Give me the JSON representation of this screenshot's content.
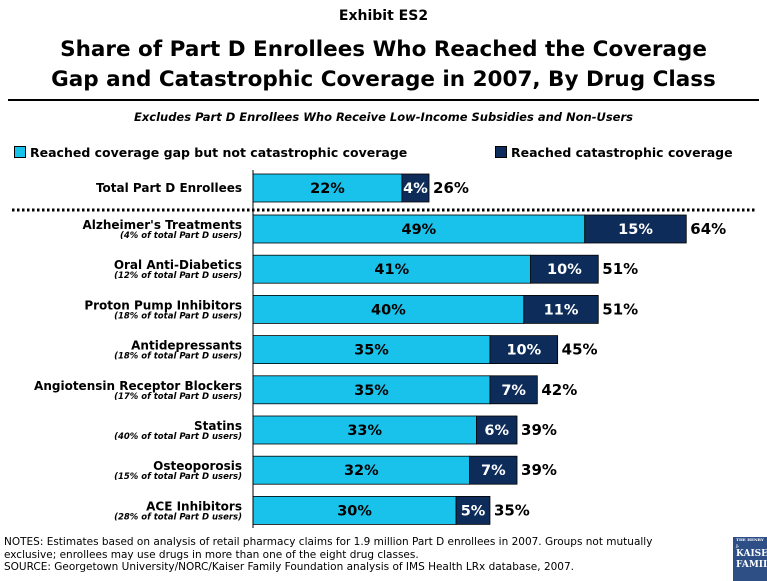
{
  "exhibit_label": "Exhibit ES2",
  "title_line1": "Share of Part D Enrollees Who Reached the Coverage",
  "title_line2": "Gap and Catastrophic Coverage in 2007, By Drug Class",
  "subtitle": "Excludes Part D Enrollees Who Receive Low-Income Subsidies and Non-Users",
  "notes_line1": "NOTES: Estimates based on analysis of retail pharmacy claims for 1.9 million Part D enrollees in 2007.  Groups not mutually",
  "notes_line2": "exclusive; enrollees may use drugs in more than one of the eight drug classes.",
  "source_line": "SOURCE: Georgetown University/NORC/Kaiser Family Foundation analysis of IMS Health LRx database, 2007.",
  "logo": {
    "small": "THE HENRY J.",
    "line1": "KAISE",
    "line2": "FAMIL"
  },
  "colors": {
    "gap": "#19c2ea",
    "catastrophic": "#0d2c5a",
    "border": "#000000"
  },
  "chart_data": {
    "type": "bar",
    "orientation": "horizontal",
    "stacked": true,
    "categories": [
      "Total Part D Enrollees",
      "Alzheimer's Treatments",
      "Oral Anti-Diabetics",
      "Proton Pump Inhibitors",
      "Antidepressants",
      "Angiotensin Receptor Blockers",
      "Statins",
      "Osteoporosis",
      "ACE Inhibitors"
    ],
    "category_notes": [
      "",
      "(4% of total Part D users)",
      "(12% of total Part D users)",
      "(18% of total Part D users)",
      "(18% of total Part D users)",
      "(17% of total Part D users)",
      "(40% of total Part D users)",
      "(15% of total Part D users)",
      "(28% of total Part D users)"
    ],
    "series": [
      {
        "name": "Reached coverage gap but not catastrophic coverage",
        "values": [
          22,
          49,
          41,
          40,
          35,
          35,
          33,
          32,
          30
        ],
        "color": "#19c2ea"
      },
      {
        "name": "Reached catastrophic coverage",
        "values": [
          4,
          15,
          10,
          11,
          10,
          7,
          6,
          7,
          5
        ],
        "color": "#0d2c5a"
      }
    ],
    "totals": [
      26,
      64,
      51,
      51,
      45,
      42,
      39,
      39,
      35
    ],
    "value_format": "percent",
    "xlim": [
      0,
      67
    ],
    "legend_position": "top",
    "separator_after_first": true,
    "grid": false
  }
}
